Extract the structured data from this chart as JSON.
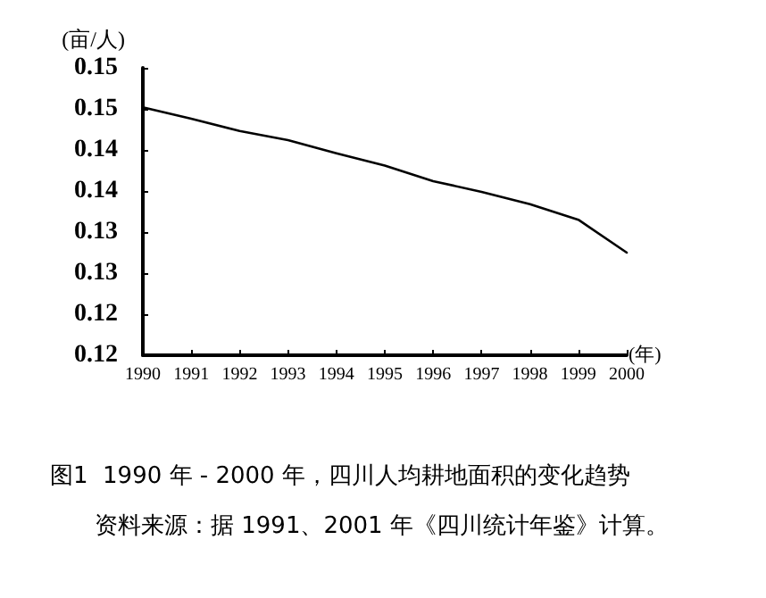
{
  "chart_data": {
    "type": "line",
    "ylabel": "(亩/人)",
    "xlabel": "(年)",
    "categories": [
      "1990",
      "1991",
      "1992",
      "1993",
      "1994",
      "1995",
      "1996",
      "1997",
      "1998",
      "1999",
      "2000"
    ],
    "series": [
      {
        "color": "#000000",
        "values": [
          0.1452,
          0.1438,
          0.1423,
          0.1412,
          0.1396,
          0.1381,
          0.1362,
          0.1349,
          0.1334,
          0.1315,
          0.1275
        ]
      }
    ],
    "ylim": [
      0.115,
      0.15
    ],
    "yticks": [
      {
        "value": 0.15,
        "label": "0.15"
      },
      {
        "value": 0.145,
        "label": "0.15"
      },
      {
        "value": 0.14,
        "label": "0.14"
      },
      {
        "value": 0.135,
        "label": "0.14"
      },
      {
        "value": 0.13,
        "label": "0.13"
      },
      {
        "value": 0.125,
        "label": "0.13"
      },
      {
        "value": 0.12,
        "label": "0.12"
      },
      {
        "value": 0.115,
        "label": "0.12"
      }
    ],
    "grid": false,
    "marker": "none",
    "line_style": "solid",
    "annotations": [
      "图1  1990 年 - 2000 年，四川人均耕地面积的变化趋势",
      "资料来源：据 1991、2001 年《四川统计年鉴》计算。"
    ]
  }
}
